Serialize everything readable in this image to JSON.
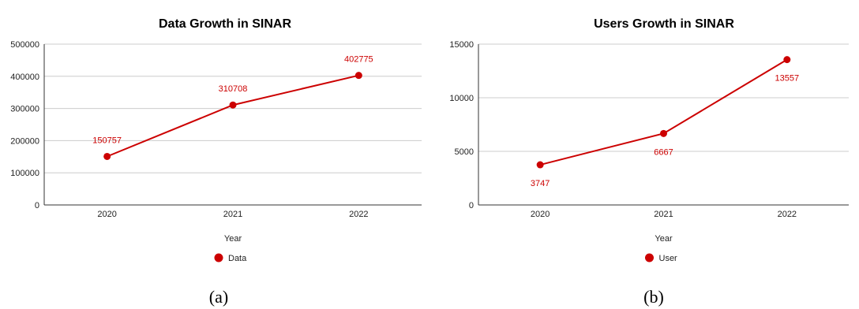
{
  "colors": {
    "series": "#cc0000",
    "grid": "#cccccc",
    "axis": "#333333"
  },
  "chart_data": [
    {
      "type": "line",
      "title": "Data Growth in SINAR",
      "xlabel": "Year",
      "ylabel": "",
      "categories": [
        "2020",
        "2021",
        "2022"
      ],
      "ylim": [
        0,
        500000
      ],
      "yticks": [
        0,
        100000,
        200000,
        300000,
        400000,
        500000
      ],
      "ytick_labels": [
        "0",
        "100000",
        "200000",
        "300000",
        "400000",
        "500000"
      ],
      "grid": true,
      "legend": "bottom-center",
      "data_label_position": "above",
      "series": [
        {
          "name": "Data",
          "values": [
            150757,
            310708,
            402775
          ],
          "labels": [
            "150757",
            "310708",
            "402775"
          ]
        }
      ],
      "caption": "(a)"
    },
    {
      "type": "line",
      "title": "Users Growth in SINAR",
      "xlabel": "Year",
      "ylabel": "",
      "categories": [
        "2020",
        "2021",
        "2022"
      ],
      "ylim": [
        0,
        15000
      ],
      "yticks": [
        0,
        5000,
        10000,
        15000
      ],
      "ytick_labels": [
        "0",
        "5000",
        "10000",
        "15000"
      ],
      "grid": true,
      "legend": "bottom-center",
      "data_label_position": "below",
      "series": [
        {
          "name": "User",
          "values": [
            3747,
            6667,
            13557
          ],
          "labels": [
            "3747",
            "6667",
            "13557"
          ]
        }
      ],
      "caption": "(b)"
    }
  ]
}
